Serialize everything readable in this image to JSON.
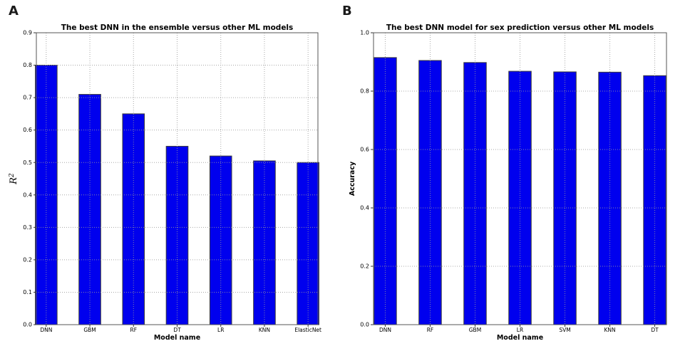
{
  "figure": {
    "background_color": "#ffffff"
  },
  "chart_data": [
    {
      "panel_label": "A",
      "type": "bar",
      "title": "The best DNN in the ensemble versus other ML models",
      "xlabel": "Model name",
      "ylabel": "R²",
      "ylabel_math": true,
      "categories": [
        "DNN",
        "GBM",
        "RF",
        "DT",
        "LR",
        "KNN",
        "ElasticNet"
      ],
      "values": [
        0.8,
        0.71,
        0.65,
        0.55,
        0.52,
        0.505,
        0.5
      ],
      "ylim": [
        0,
        0.9
      ],
      "ytick_values": [
        0.0,
        0.1,
        0.2,
        0.3,
        0.4,
        0.5,
        0.6,
        0.7,
        0.8,
        0.9
      ],
      "ytick_labels": [
        "0.0",
        "0.1",
        "0.2",
        "0.3",
        "0.4",
        "0.5",
        "0.6",
        "0.7",
        "0.8",
        "0.9"
      ],
      "grid": true,
      "legend": "none",
      "bar_color": "#0000ee",
      "bar_edge_color": "#3d3d3d",
      "frame_color": "#555555",
      "grid_color": "#999999",
      "text_color": "#000000"
    },
    {
      "panel_label": "B",
      "type": "bar",
      "title": "The best DNN model for sex prediction versus other ML models",
      "xlabel": "Model name",
      "ylabel": "Accuracy",
      "ylabel_math": false,
      "categories": [
        "DNN",
        "RF",
        "GBM",
        "LR",
        "SVM",
        "KNN",
        "DT"
      ],
      "values": [
        0.915,
        0.905,
        0.898,
        0.868,
        0.866,
        0.865,
        0.853
      ],
      "ylim": [
        0,
        1.0
      ],
      "ytick_values": [
        0.0,
        0.2,
        0.4,
        0.6,
        0.8,
        1.0
      ],
      "ytick_labels": [
        "0.0",
        "0.2",
        "0.4",
        "0.6",
        "0.8",
        "1.0"
      ],
      "grid": true,
      "legend": "none",
      "bar_color": "#0000ee",
      "bar_edge_color": "#3d3d3d",
      "frame_color": "#555555",
      "grid_color": "#999999",
      "text_color": "#000000"
    }
  ]
}
